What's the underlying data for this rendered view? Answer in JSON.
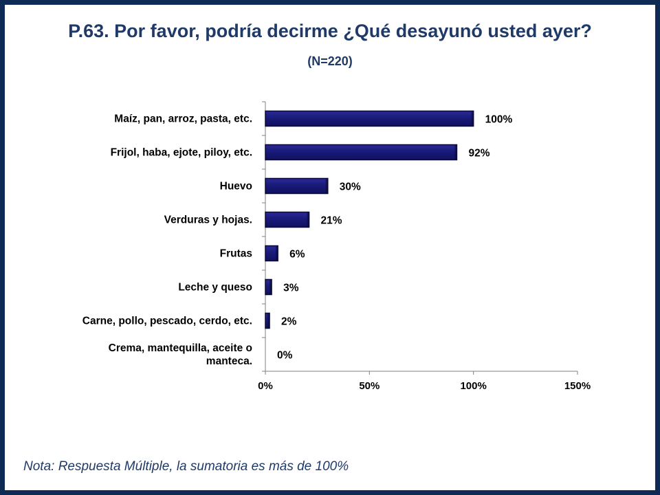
{
  "slide": {
    "title": "P.63. Por favor, podría decirme ¿Qué desayunó usted ayer?",
    "subtitle": "(N=220)",
    "note": "Nota: Respuesta Múltiple, la sumatoria es más de 100%"
  },
  "colors": {
    "border": "#0f2a55",
    "title_text": "#1f3a68",
    "bar_fill": "#1a1a7a",
    "bar_edge": "#0a0a3a"
  },
  "chart_data": {
    "type": "bar",
    "orientation": "horizontal",
    "title": "",
    "xlabel": "",
    "ylabel": "",
    "categories": [
      "Maíz, pan, arroz, pasta, etc.",
      "Frijol, haba, ejote, piloy, etc.",
      "Huevo",
      "Verduras y hojas.",
      "Frutas",
      "Leche y queso",
      "Carne, pollo, pescado, cerdo, etc.",
      "Crema, mantequilla, aceite o manteca."
    ],
    "category_lines": [
      [
        "Maíz, pan, arroz, pasta, etc."
      ],
      [
        "Frijol, haba, ejote, piloy, etc."
      ],
      [
        "Huevo"
      ],
      [
        "Verduras y hojas."
      ],
      [
        "Frutas"
      ],
      [
        "Leche y queso"
      ],
      [
        "Carne, pollo, pescado, cerdo, etc."
      ],
      [
        "Crema, mantequilla, aceite o",
        "manteca."
      ]
    ],
    "values": [
      100,
      92,
      30,
      21,
      6,
      3,
      2,
      0
    ],
    "data_labels": [
      "100%",
      "92%",
      "30%",
      "21%",
      "6%",
      "3%",
      "2%",
      "0%"
    ],
    "xlim": [
      0,
      150
    ],
    "x_ticks": [
      0,
      50,
      100,
      150
    ],
    "x_tick_labels": [
      "0%",
      "50%",
      "100%",
      "150%"
    ],
    "grid": false,
    "legend": "none"
  }
}
